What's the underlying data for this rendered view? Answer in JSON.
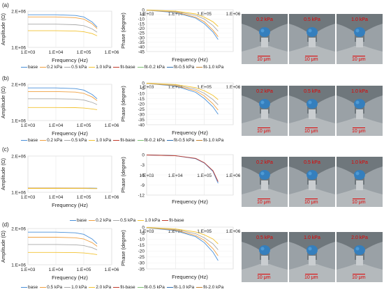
{
  "panels": [
    {
      "label": "(a)",
      "amp": {
        "ylabel": "Amplitude (Ω)",
        "xlabel": "Frequency (Hz)",
        "yticks": [
          "2.E+06",
          "1.E+06"
        ],
        "xticks": [
          "1.E+03",
          "1.E+04",
          "1.E+05",
          "1.E+06"
        ]
      },
      "phase": {
        "ylabel": "Phase (degree)",
        "xlabel": "Frequency (Hz)",
        "yticks": [
          "0",
          "-5",
          "-10",
          "-15",
          "-20",
          "-25",
          "-30",
          "-35",
          "-40",
          "-45"
        ],
        "xticks": [
          "1.E+03",
          "1.E+04",
          "1.E+05",
          "1.E+06"
        ]
      },
      "legend": [
        "base",
        "0.2 kPa",
        "0.5 kPa",
        "1.0 kPa",
        "fit-base",
        "fit-0.2 kPa",
        "fit-0.5 kPa",
        "fit-1.0 kPa"
      ],
      "pressures": [
        "0.2 kPa",
        "0.5 kPa",
        "1.0 kPa"
      ],
      "scale": "10 μm"
    },
    {
      "label": "(b)",
      "amp": {
        "ylabel": "Amplitude (Ω)",
        "xlabel": "Frequency (Hz)",
        "yticks": [
          "2.E+06",
          "1.E+06"
        ],
        "xticks": [
          "1.E+03",
          "1.E+04",
          "1.E+05",
          "1.E+06"
        ]
      },
      "phase": {
        "ylabel": "Phase (degree)",
        "xlabel": "Frequency (Hz)",
        "yticks": [
          "0",
          "-5",
          "-10",
          "-15",
          "-20",
          "-25",
          "-30",
          "-35",
          "-40"
        ],
        "xticks": [
          "1.E+03",
          "1.E+04",
          "1.E+05",
          "1.E+06"
        ]
      },
      "legend": [
        "base",
        "0.2 kPa",
        "0.5 kPa",
        "1.0 kPa",
        "fit-base",
        "fit-0.2 kPa",
        "fit-0.5 kPa",
        "fit-1.0 kPa"
      ],
      "pressures": [
        "0.2 kPa",
        "0.5 kPa",
        "1.0 kPa"
      ],
      "scale": "10 μm"
    },
    {
      "label": "(c)",
      "amp": {
        "ylabel": "Amplitude (Ω)",
        "xlabel": "Frequency (Hz)",
        "yticks": [
          "2.E+06",
          "1.E+06"
        ],
        "xticks": [
          "1.E+03",
          "1.E+04",
          "1.E+05",
          "1.E+06"
        ]
      },
      "phase": {
        "ylabel": "Phase (degree)",
        "xlabel": "Frequency (Hz)",
        "yticks": [
          "0",
          "-3",
          "-6",
          "-9",
          "-12"
        ],
        "xticks": [
          "1.E+03",
          "1.E+04",
          "1.E+05",
          "1.E+06"
        ]
      },
      "legend": [
        "base",
        "0.2 kPa",
        "0.5 kPa",
        "1.0 kPa",
        "fit-base"
      ],
      "pressures": [
        "0.2 kPa",
        "0.5 kPa",
        "1.0 kPa"
      ],
      "scale": "10 μm"
    },
    {
      "label": "(d)",
      "amp": {
        "ylabel": "Amplitude (Ω)",
        "xlabel": "Frequency (Hz)",
        "yticks": [
          "2.E+06",
          "1.E+06"
        ],
        "xticks": [
          "1.E+03",
          "1.E+04",
          "1.E+05",
          "1.E+06"
        ]
      },
      "phase": {
        "ylabel": "Phase (degree)",
        "xlabel": "Frequency (Hz)",
        "yticks": [
          "0",
          "-5",
          "-10",
          "-15",
          "-20",
          "-25",
          "-30",
          "-35"
        ],
        "xticks": [
          "1.E+03",
          "1.E+04",
          "1.E+05",
          "1.E+06"
        ]
      },
      "legend": [
        "base",
        "0.5 kPa",
        "1.0 kPa",
        "2.0 kPa",
        "fit-base",
        "fit-0.5 kPa",
        "fit-1.0 kPa",
        "fit-2.0 kPa"
      ],
      "pressures": [
        "0.5 kPa",
        "1.0 kPa",
        "2.0 kPa"
      ],
      "scale": "10 μm"
    }
  ],
  "colors": [
    "#4a90d9",
    "#f0a040",
    "#a8a8a8",
    "#f2c230",
    "#6a8fd0",
    "#7cc070",
    "#2e6fb0",
    "#c08030"
  ],
  "chart_data": [
    {
      "type": "line",
      "panel": "(a)",
      "title": "",
      "xlabel": "Frequency (Hz)",
      "ylabel": "Amplitude (Ω)",
      "xscale": "log",
      "xlim": [
        1000,
        1000000
      ],
      "series": [
        {
          "name": "base",
          "x": [
            1000,
            10000,
            50000,
            100000,
            200000,
            300000
          ],
          "values": [
            1900000,
            1900000,
            1880000,
            1840000,
            1700000,
            1560000
          ]
        },
        {
          "name": "0.2 kPa",
          "x": [
            1000,
            10000,
            50000,
            100000,
            200000,
            300000
          ],
          "values": [
            1840000,
            1840000,
            1820000,
            1780000,
            1650000,
            1520000
          ]
        },
        {
          "name": "0.5 kPa",
          "x": [
            1000,
            10000,
            50000,
            100000,
            200000,
            300000
          ],
          "values": [
            1640000,
            1640000,
            1625000,
            1600000,
            1510000,
            1420000
          ]
        },
        {
          "name": "1.0 kPa",
          "x": [
            1000,
            10000,
            50000,
            100000,
            200000,
            300000
          ],
          "values": [
            1460000,
            1460000,
            1450000,
            1430000,
            1380000,
            1320000
          ]
        }
      ]
    },
    {
      "type": "line",
      "panel": "(a)",
      "title": "",
      "xlabel": "Frequency (Hz)",
      "ylabel": "Phase (degree)",
      "xscale": "log",
      "xlim": [
        1000,
        1000000
      ],
      "ylim": [
        -45,
        0
      ],
      "series": [
        {
          "name": "base",
          "x": [
            1000,
            10000,
            50000,
            100000,
            200000,
            300000
          ],
          "values": [
            -0.5,
            -3,
            -9,
            -15,
            -24,
            -32
          ]
        },
        {
          "name": "0.2 kPa",
          "x": [
            1000,
            10000,
            50000,
            100000,
            200000,
            300000
          ],
          "values": [
            -0.5,
            -2.5,
            -8,
            -13,
            -22,
            -29
          ]
        },
        {
          "name": "0.5 kPa",
          "x": [
            1000,
            10000,
            50000,
            100000,
            200000,
            300000
          ],
          "values": [
            -0.4,
            -2,
            -6,
            -10,
            -17,
            -23
          ]
        },
        {
          "name": "1.0 kPa",
          "x": [
            1000,
            10000,
            50000,
            100000,
            200000,
            300000
          ],
          "values": [
            -0.3,
            -1.5,
            -4.5,
            -8,
            -13,
            -18
          ]
        }
      ]
    },
    {
      "type": "line",
      "panel": "(b)",
      "title": "",
      "xlabel": "Frequency (Hz)",
      "ylabel": "Amplitude (Ω)",
      "xscale": "log",
      "xlim": [
        1000,
        1000000
      ],
      "series": [
        {
          "name": "base",
          "x": [
            1000,
            10000,
            50000,
            100000,
            200000,
            300000
          ],
          "values": [
            1900000,
            1900000,
            1880000,
            1840000,
            1720000,
            1600000
          ]
        },
        {
          "name": "0.2 kPa",
          "x": [
            1000,
            10000,
            50000,
            100000,
            200000,
            300000
          ],
          "values": [
            1800000,
            1800000,
            1785000,
            1750000,
            1650000,
            1550000
          ]
        },
        {
          "name": "0.5 kPa",
          "x": [
            1000,
            10000,
            50000,
            100000,
            200000,
            300000
          ],
          "values": [
            1600000,
            1600000,
            1590000,
            1565000,
            1500000,
            1440000
          ]
        },
        {
          "name": "1.0 kPa",
          "x": [
            1000,
            10000,
            50000,
            100000,
            200000,
            300000
          ],
          "values": [
            1360000,
            1360000,
            1355000,
            1345000,
            1320000,
            1300000
          ]
        }
      ]
    },
    {
      "type": "line",
      "panel": "(b)",
      "title": "",
      "xlabel": "Frequency (Hz)",
      "ylabel": "Phase (degree)",
      "xscale": "log",
      "xlim": [
        1000,
        1000000
      ],
      "ylim": [
        -40,
        0
      ],
      "series": [
        {
          "name": "base",
          "x": [
            1000,
            10000,
            50000,
            100000,
            200000,
            300000
          ],
          "values": [
            -0.5,
            -3,
            -9,
            -15,
            -23,
            -30
          ]
        },
        {
          "name": "0.2 kPa",
          "x": [
            1000,
            10000,
            50000,
            100000,
            200000,
            300000
          ],
          "values": [
            -0.5,
            -2.5,
            -7.5,
            -12.5,
            -20,
            -26
          ]
        },
        {
          "name": "0.5 kPa",
          "x": [
            1000,
            10000,
            50000,
            100000,
            200000,
            300000
          ],
          "values": [
            -0.4,
            -2,
            -6,
            -10,
            -16,
            -21
          ]
        },
        {
          "name": "1.0 kPa",
          "x": [
            1000,
            10000,
            50000,
            100000,
            200000,
            300000
          ],
          "values": [
            -0.3,
            -1.5,
            -4.5,
            -7.5,
            -12,
            -16
          ]
        }
      ]
    },
    {
      "type": "line",
      "panel": "(c)",
      "title": "",
      "xlabel": "Frequency (Hz)",
      "ylabel": "Amplitude (Ω)",
      "xscale": "log",
      "xlim": [
        1000,
        1000000
      ],
      "series": [
        {
          "name": "base",
          "x": [
            1000,
            10000,
            100000,
            300000
          ],
          "values": [
            1120000,
            1120000,
            1118000,
            1112000
          ]
        },
        {
          "name": "0.2 kPa",
          "x": [
            1000,
            10000,
            100000,
            300000
          ],
          "values": [
            1115000,
            1115000,
            1113000,
            1108000
          ]
        },
        {
          "name": "0.5 kPa",
          "x": [
            1000,
            10000,
            100000,
            300000
          ],
          "values": [
            1110000,
            1110000,
            1108000,
            1104000
          ]
        },
        {
          "name": "1.0 kPa",
          "x": [
            1000,
            10000,
            100000,
            300000
          ],
          "values": [
            1105000,
            1105000,
            1104000,
            1100000
          ]
        }
      ]
    },
    {
      "type": "line",
      "panel": "(c)",
      "title": "",
      "xlabel": "Frequency (Hz)",
      "ylabel": "Phase (degree)",
      "xscale": "log",
      "xlim": [
        1000,
        1000000
      ],
      "ylim": [
        -12,
        0
      ],
      "series": [
        {
          "name": "base",
          "x": [
            1000,
            10000,
            50000,
            100000,
            200000,
            300000
          ],
          "values": [
            -0.1,
            -0.3,
            -1.2,
            -2.5,
            -5,
            -8.5
          ]
        },
        {
          "name": "fit-base",
          "x": [
            1000,
            10000,
            50000,
            100000,
            200000,
            300000
          ],
          "values": [
            -0.1,
            -0.3,
            -1.1,
            -2.4,
            -4.8,
            -8
          ]
        }
      ]
    },
    {
      "type": "line",
      "panel": "(d)",
      "title": "",
      "xlabel": "Frequency (Hz)",
      "ylabel": "Amplitude (Ω)",
      "xscale": "log",
      "xlim": [
        1000,
        1000000
      ],
      "series": [
        {
          "name": "base",
          "x": [
            1000,
            10000,
            50000,
            100000,
            200000,
            300000
          ],
          "values": [
            1900000,
            1900000,
            1880000,
            1840000,
            1710000,
            1580000
          ]
        },
        {
          "name": "0.5 kPa",
          "x": [
            1000,
            10000,
            50000,
            100000,
            200000,
            300000
          ],
          "values": [
            1760000,
            1760000,
            1745000,
            1710000,
            1610000,
            1510000
          ]
        },
        {
          "name": "1.0 kPa",
          "x": [
            1000,
            10000,
            50000,
            100000,
            200000,
            300000
          ],
          "values": [
            1560000,
            1560000,
            1550000,
            1530000,
            1470000,
            1410000
          ]
        },
        {
          "name": "2.0 kPa",
          "x": [
            1000,
            10000,
            50000,
            100000,
            200000,
            300000
          ],
          "values": [
            1340000,
            1340000,
            1335000,
            1325000,
            1300000,
            1280000
          ]
        }
      ]
    },
    {
      "type": "line",
      "panel": "(d)",
      "title": "",
      "xlabel": "Frequency (Hz)",
      "ylabel": "Phase (degree)",
      "xscale": "log",
      "xlim": [
        1000,
        1000000
      ],
      "ylim": [
        -35,
        0
      ],
      "series": [
        {
          "name": "base",
          "x": [
            1000,
            10000,
            50000,
            100000,
            200000,
            300000
          ],
          "values": [
            -0.5,
            -3,
            -8,
            -13,
            -21,
            -28
          ]
        },
        {
          "name": "0.5 kPa",
          "x": [
            1000,
            10000,
            50000,
            100000,
            200000,
            300000
          ],
          "values": [
            -0.4,
            -2.5,
            -7,
            -11,
            -18,
            -24
          ]
        },
        {
          "name": "1.0 kPa",
          "x": [
            1000,
            10000,
            50000,
            100000,
            200000,
            300000
          ],
          "values": [
            -0.3,
            -2,
            -5.5,
            -9,
            -14,
            -19
          ]
        },
        {
          "name": "2.0 kPa",
          "x": [
            1000,
            10000,
            50000,
            100000,
            200000,
            300000
          ],
          "values": [
            -0.3,
            -1.5,
            -4,
            -6.5,
            -10,
            -14
          ]
        }
      ]
    }
  ]
}
